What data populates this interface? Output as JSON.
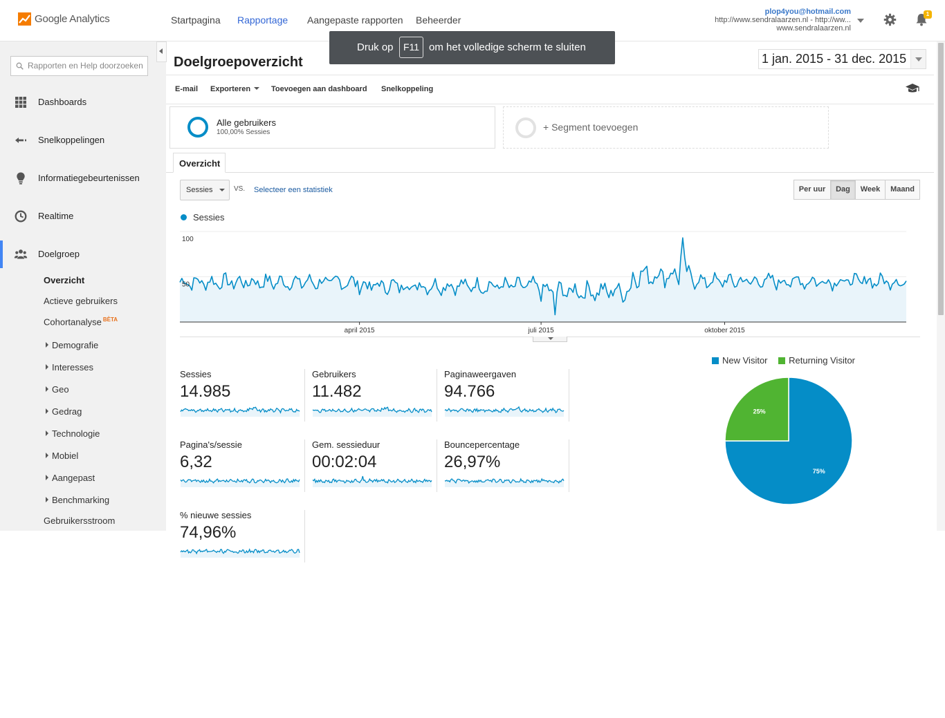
{
  "header": {
    "app_name": "Google Analytics",
    "nav": [
      "Startpagina",
      "Rapportage",
      "Aangepaste rapporten",
      "Beheerder"
    ],
    "active_nav": "Rapportage",
    "account": {
      "email": "plop4you@hotmail.com",
      "property": "http://www.sendralaarzen.nl - http://ww...",
      "view": "www.sendralaarzen.nl"
    },
    "notification_count": "1"
  },
  "toast": {
    "before": "Druk op",
    "key": "F11",
    "after": "om het volledige scherm te sluiten"
  },
  "sidebar": {
    "search_placeholder": "Rapporten en Help doorzoeken",
    "items": [
      {
        "label": "Dashboards",
        "icon": "grid-icon"
      },
      {
        "label": "Snelkoppelingen",
        "icon": "shortcut-arrow-icon"
      },
      {
        "label": "Informatiegebeurtenissen",
        "icon": "lightbulb-icon"
      },
      {
        "label": "Realtime",
        "icon": "clock-icon"
      },
      {
        "label": "Doelgroep",
        "icon": "people-icon"
      }
    ],
    "audience": {
      "overview": "Overzicht",
      "active_users": "Actieve gebruikers",
      "cohort": "Cohortanalyse",
      "cohort_badge": "BÈTA",
      "groups": [
        "Demografie",
        "Interesses",
        "Geo",
        "Gedrag",
        "Technologie",
        "Mobiel",
        "Aangepast",
        "Benchmarking"
      ],
      "user_flow": "Gebruikersstroom"
    }
  },
  "page": {
    "title": "Doelgroepoverzicht",
    "date_range": "1 jan. 2015 - 31 dec. 2015"
  },
  "toolbar": {
    "email": "E-mail",
    "export": "Exporteren",
    "add_dashboard": "Toevoegen aan dashboard",
    "shortcut": "Snelkoppeling"
  },
  "segments": {
    "active_name": "Alle gebruikers",
    "active_sub": "100,00% Sessies",
    "add_label": "+ Segment toevoegen"
  },
  "tabs": {
    "overview": "Overzicht"
  },
  "chart_controls": {
    "metric": "Sessies",
    "vs": "VS.",
    "select_metric": "Selecteer een statistiek",
    "granularity": [
      "Per uur",
      "Dag",
      "Week",
      "Maand"
    ],
    "selected_granularity": "Dag"
  },
  "chart_data": [
    {
      "type": "area",
      "series": [
        {
          "name": "Sessies"
        }
      ],
      "x_range": [
        "2015-01-01",
        "2015-12-31"
      ],
      "x_tick_labels": [
        "april 2015",
        "juli 2015",
        "oktober 2015"
      ],
      "y_tick_labels": [
        "100",
        "50"
      ],
      "ylim": [
        0,
        100
      ],
      "color": "#058dc7",
      "fill": "#e9f4fa",
      "segments": [
        {
          "from": "2015-01-01",
          "to": "2015-03-31",
          "mean": 44,
          "amplitude": 8
        },
        {
          "from": "2015-04-01",
          "to": "2015-06-30",
          "mean": 40,
          "amplitude": 8
        },
        {
          "from": "2015-07-01",
          "to": "2015-08-15",
          "mean": 34,
          "amplitude": 10
        },
        {
          "from": "2015-08-16",
          "to": "2015-09-15",
          "mean": 52,
          "amplitude": 11
        },
        {
          "from": "2015-09-16",
          "to": "2015-12-31",
          "mean": 45,
          "amplitude": 8
        }
      ],
      "peak": {
        "x": "2015-09-10",
        "y": 93
      },
      "low": {
        "x": "2015-07-08",
        "y": 8
      }
    },
    {
      "type": "pie",
      "legend": [
        "New Visitor",
        "Returning Visitor"
      ],
      "values": [
        75,
        25
      ],
      "labels": [
        "75%",
        "25%"
      ],
      "colors": [
        "#058dc7",
        "#50b432"
      ]
    }
  ],
  "metrics": [
    {
      "label": "Sessies",
      "value": "14.985"
    },
    {
      "label": "Gebruikers",
      "value": "11.482"
    },
    {
      "label": "Paginaweergaven",
      "value": "94.766"
    },
    {
      "label": "Pagina's/sessie",
      "value": "6,32"
    },
    {
      "label": "Gem. sessieduur",
      "value": "00:02:04"
    },
    {
      "label": "Bouncepercentage",
      "value": "26,97%"
    },
    {
      "label": "% nieuwe sessies",
      "value": "74,96%"
    }
  ],
  "colors": {
    "accent": "#3367d6",
    "series": "#058dc7",
    "returning": "#50b432",
    "sidebar_bg": "#f1f1f1"
  }
}
